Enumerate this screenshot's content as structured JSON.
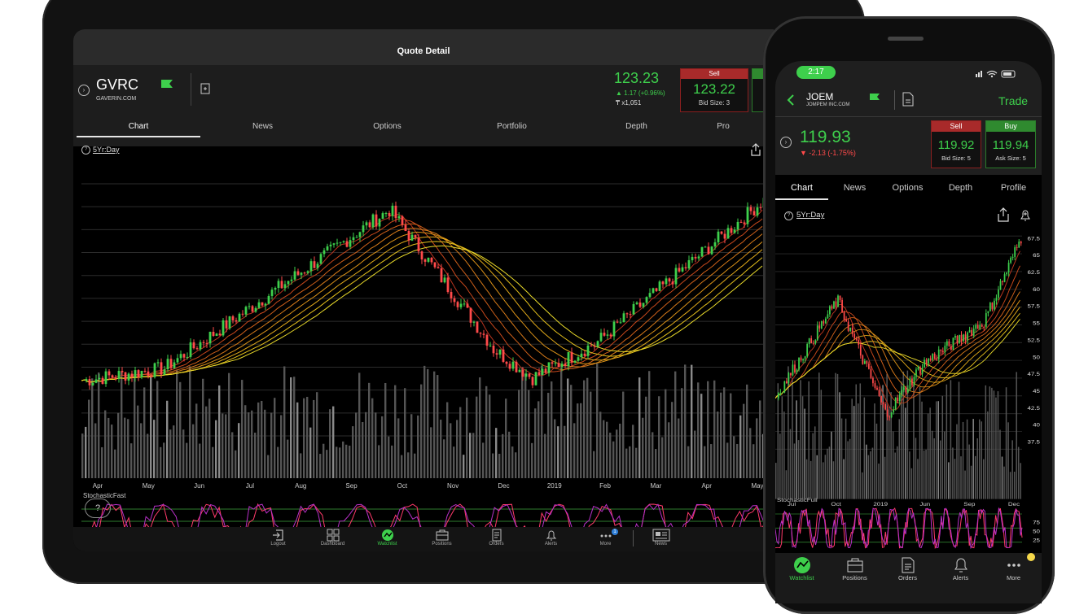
{
  "tablet": {
    "title": "Quote Detail",
    "symbol": "GVRC",
    "company": "GAVERIN.COM",
    "last": "123.23",
    "change": "▲ 1.17 (+0.96%)",
    "volume": "₸ x1,051",
    "sell": {
      "label": "Sell",
      "price": "123.22",
      "size": "Bid Size: 3"
    },
    "tabs": [
      "Chart",
      "News",
      "Options",
      "Portfolio",
      "Depth",
      "Pro"
    ],
    "range": "5Yr:Day",
    "x_labels": [
      "Apr",
      "May",
      "Jun",
      "Jul",
      "Aug",
      "Sep",
      "Oct",
      "Nov",
      "Dec",
      "2019",
      "Feb",
      "Mar",
      "Apr",
      "May"
    ],
    "indicator": "StochasticFast",
    "help": "?",
    "nav": [
      "Logout",
      "Dashboard",
      "Watchlist",
      "Positions",
      "Orders",
      "Alerts",
      "More",
      "News"
    ],
    "more_badge": "1"
  },
  "phone": {
    "time": "2:17",
    "symbol": "JOEM",
    "company": "JOMPEM INC.COM",
    "trade": "Trade",
    "last": "119.93",
    "change": "▼ -2.13 (-1.75%)",
    "sell": {
      "label": "Sell",
      "price": "119.92",
      "size": "Bid Size: 5"
    },
    "buy": {
      "label": "Buy",
      "price": "119.94",
      "size": "Ask Size: 5"
    },
    "tabs": [
      "Chart",
      "News",
      "Options",
      "Depth",
      "Profile"
    ],
    "range": "5Yr:Day",
    "y_labels": [
      "67.5",
      "65",
      "62.5",
      "60",
      "57.5",
      "55",
      "52.5",
      "50",
      "47.5",
      "45",
      "42.5",
      "40",
      "37.5"
    ],
    "x_labels": [
      "Jul",
      "Oct",
      "2019",
      "Jun",
      "Sep",
      "Dec"
    ],
    "indicator": "StochasticFull",
    "stoch_labels": [
      "75",
      "50",
      "25"
    ],
    "nav": [
      "Watchlist",
      "Positions",
      "Orders",
      "Alerts",
      "More"
    ]
  },
  "colors": {
    "green": "#3ecf4c",
    "red": "#ff4a4a",
    "bg": "#000000"
  }
}
